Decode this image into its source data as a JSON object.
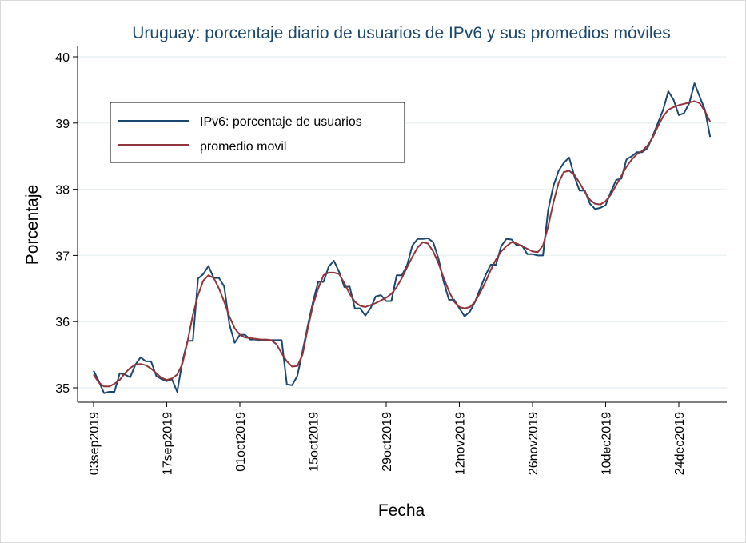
{
  "chart_data": {
    "type": "line",
    "title": "Uruguay: porcentaje diario de usuarios de IPv6 y sus promedios móviles",
    "xlabel": "Fecha",
    "ylabel": "Porcentaje",
    "x_start": "2019-09-03",
    "x_tick_labels": [
      "03sep2019",
      "17sep2019",
      "01oct2019",
      "15oct2019",
      "29oct2019",
      "12nov2019",
      "26nov2019",
      "10dec2019",
      "24dec2019"
    ],
    "y_ticks": [
      35,
      36,
      37,
      38,
      39,
      40
    ],
    "ylim": [
      34.8,
      40.2
    ],
    "grid": true,
    "legend_position": "top-left",
    "series": [
      {
        "name": "IPv6: porcentaje de usuarios",
        "color": "#1a476f",
        "values": [
          35.26,
          35.1,
          34.92,
          34.94,
          34.94,
          35.22,
          35.2,
          35.16,
          35.35,
          35.46,
          35.4,
          35.4,
          35.18,
          35.13,
          35.1,
          35.13,
          34.94,
          35.4,
          35.71,
          35.71,
          36.65,
          36.72,
          36.84,
          36.66,
          36.66,
          36.53,
          35.96,
          35.68,
          35.8,
          35.8,
          35.73,
          35.73,
          35.72,
          35.72,
          35.72,
          35.72,
          35.72,
          35.05,
          35.04,
          35.18,
          35.55,
          35.94,
          36.3,
          36.6,
          36.6,
          36.83,
          36.92,
          36.75,
          36.52,
          36.53,
          36.2,
          36.2,
          36.09,
          36.2,
          36.38,
          36.4,
          36.31,
          36.31,
          36.7,
          36.7,
          36.85,
          37.15,
          37.25,
          37.25,
          37.26,
          37.2,
          36.95,
          36.6,
          36.33,
          36.33,
          36.2,
          36.08,
          36.15,
          36.3,
          36.5,
          36.7,
          36.86,
          36.86,
          37.14,
          37.25,
          37.24,
          37.15,
          37.15,
          37.02,
          37.02,
          37.0,
          37.0,
          37.69,
          38.05,
          38.28,
          38.4,
          38.48,
          38.2,
          37.98,
          37.98,
          37.78,
          37.7,
          37.72,
          37.76,
          37.96,
          38.14,
          38.16,
          38.45,
          38.5,
          38.56,
          38.56,
          38.62,
          38.8,
          39.0,
          39.2,
          39.48,
          39.35,
          39.12,
          39.15,
          39.3,
          39.6,
          39.4,
          39.2,
          38.79
        ]
      },
      {
        "name": "promedio movil",
        "color": "#90353b",
        "values": [
          35.2,
          35.08,
          35.02,
          35.02,
          35.06,
          35.12,
          35.22,
          35.3,
          35.35,
          35.36,
          35.34,
          35.29,
          35.22,
          35.15,
          35.12,
          35.14,
          35.2,
          35.36,
          35.7,
          36.1,
          36.4,
          36.62,
          36.7,
          36.66,
          36.5,
          36.3,
          36.08,
          35.9,
          35.8,
          35.76,
          35.75,
          35.74,
          35.73,
          35.73,
          35.72,
          35.66,
          35.52,
          35.4,
          35.32,
          35.33,
          35.5,
          35.9,
          36.25,
          36.5,
          36.7,
          36.74,
          36.74,
          36.72,
          36.58,
          36.42,
          36.3,
          36.24,
          36.22,
          36.25,
          36.28,
          36.32,
          36.36,
          36.42,
          36.52,
          36.66,
          36.82,
          36.98,
          37.12,
          37.2,
          37.18,
          37.06,
          36.88,
          36.66,
          36.46,
          36.3,
          36.22,
          36.2,
          36.22,
          36.3,
          36.44,
          36.6,
          36.78,
          36.94,
          37.06,
          37.14,
          37.2,
          37.18,
          37.14,
          37.1,
          37.06,
          37.05,
          37.15,
          37.44,
          37.8,
          38.1,
          38.26,
          38.28,
          38.22,
          38.1,
          37.96,
          37.84,
          37.78,
          37.77,
          37.82,
          37.92,
          38.06,
          38.2,
          38.34,
          38.45,
          38.53,
          38.58,
          38.66,
          38.78,
          38.95,
          39.1,
          39.2,
          39.24,
          39.27,
          39.29,
          39.31,
          39.33,
          39.3,
          39.18,
          39.02
        ]
      }
    ]
  }
}
